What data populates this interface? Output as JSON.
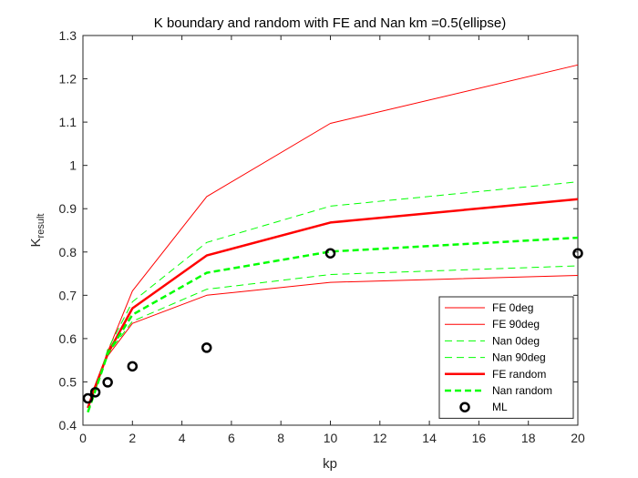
{
  "chart_data": {
    "type": "line",
    "title": "K boundary and random with FE and Nan km =0.5(ellipse)",
    "xlabel": "kp",
    "ylabel": {
      "main": "K",
      "sub": "result"
    },
    "xlim": [
      0,
      20
    ],
    "ylim": [
      0.4,
      1.3
    ],
    "xticks": [
      "0",
      "2",
      "4",
      "6",
      "8",
      "10",
      "12",
      "14",
      "16",
      "18",
      "20"
    ],
    "yticks": [
      "0.4",
      "0.5",
      "0.6",
      "0.7",
      "0.8",
      "0.9",
      "1",
      "1.1",
      "1.2",
      "1.3"
    ],
    "grid": false,
    "legend_position": "bottom-right",
    "x": [
      0.2,
      0.5,
      1,
      2,
      5,
      10,
      20
    ],
    "series": [
      {
        "name": "FE 0deg",
        "color": "#ff0000",
        "style": "solid",
        "width": 1,
        "values": [
          0.44,
          0.49,
          0.57,
          0.71,
          0.928,
          1.097,
          1.232
        ]
      },
      {
        "name": "FE 90deg",
        "color": "#ff0000",
        "style": "solid",
        "width": 1,
        "values": [
          0.44,
          0.49,
          0.56,
          0.635,
          0.7,
          0.73,
          0.746
        ]
      },
      {
        "name": "Nan 0deg",
        "color": "#00ff00",
        "style": "dashed",
        "width": 1,
        "values": [
          0.43,
          0.48,
          0.575,
          0.685,
          0.822,
          0.906,
          0.962
        ]
      },
      {
        "name": "Nan 90deg",
        "color": "#00ff00",
        "style": "dashed",
        "width": 1,
        "values": [
          0.43,
          0.48,
          0.565,
          0.64,
          0.714,
          0.748,
          0.768
        ]
      },
      {
        "name": "FE random",
        "color": "#ff0000",
        "style": "solid",
        "width": 2.5,
        "values": [
          0.44,
          0.49,
          0.565,
          0.67,
          0.792,
          0.868,
          0.922
        ]
      },
      {
        "name": "Nan random",
        "color": "#00ff00",
        "style": "dashed",
        "width": 2.5,
        "values": [
          0.43,
          0.48,
          0.565,
          0.655,
          0.752,
          0.801,
          0.833
        ]
      }
    ],
    "markers": {
      "name": "ML",
      "color": "#000000",
      "x": [
        0.2,
        0.5,
        1,
        2,
        5,
        10,
        20
      ],
      "values": [
        0.462,
        0.476,
        0.499,
        0.536,
        0.579,
        0.797,
        0.797
      ]
    }
  }
}
